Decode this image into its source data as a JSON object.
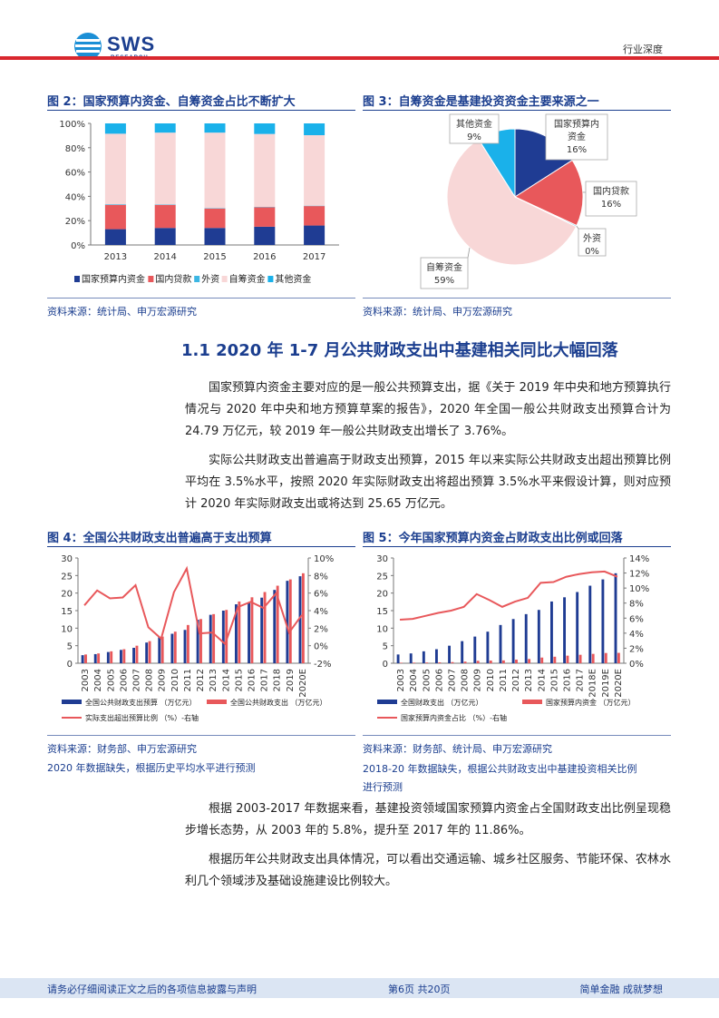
{
  "header": {
    "logo_text": "SWS",
    "logo_sub": "RESEARCH",
    "doc_type": "行业深度"
  },
  "fig2": {
    "title": "图 2：国家预算内资金、自筹资金占比不断扩大",
    "source": "资料来源：统计局、申万宏源研究",
    "chart_data": {
      "type": "bar",
      "stacked": true,
      "categories": [
        "2013",
        "2014",
        "2015",
        "2016",
        "2017"
      ],
      "y_ticks": [
        "0%",
        "20%",
        "40%",
        "60%",
        "80%",
        "100%"
      ],
      "ylim": [
        0,
        100
      ],
      "series": [
        {
          "name": "国家预算内资金",
          "color": "#1f3c93",
          "values": [
            13,
            14,
            14,
            15,
            16
          ]
        },
        {
          "name": "国内贷款",
          "color": "#e8585b",
          "values": [
            20,
            19,
            16,
            16,
            16
          ]
        },
        {
          "name": "外资",
          "color": "#3cb6e3",
          "values": [
            0.5,
            0.4,
            0.4,
            0.3,
            0.3
          ]
        },
        {
          "name": "自筹资金",
          "color": "#f8d7d7",
          "values": [
            58,
            59,
            62,
            60,
            58
          ]
        },
        {
          "name": "其他资金",
          "color": "#1ab1ea",
          "values": [
            8.5,
            7.6,
            7.6,
            8.7,
            9.7
          ]
        }
      ]
    }
  },
  "fig3": {
    "title": "图 3：自筹资金是基建投资资金主要来源之一",
    "source": "资料来源：统计局、申万宏源研究",
    "chart_data": {
      "type": "pie",
      "slices": [
        {
          "name": "国家预算内资金",
          "label1": "国家预算内",
          "label2": "资金",
          "pct": "16%",
          "value": 16,
          "color": "#1f3c93"
        },
        {
          "name": "国内贷款",
          "label1": "国内贷款",
          "label2": "",
          "pct": "16%",
          "value": 16,
          "color": "#e8585b"
        },
        {
          "name": "外资",
          "label1": "外资",
          "label2": "",
          "pct": "0%",
          "value": 0.3,
          "color": "#3cb6e3"
        },
        {
          "name": "自筹资金",
          "label1": "自筹资金",
          "label2": "",
          "pct": "59%",
          "value": 59,
          "color": "#f8d7d7"
        },
        {
          "name": "其他资金",
          "label1": "其他资金",
          "label2": "",
          "pct": "9%",
          "value": 9,
          "color": "#1ab1ea"
        }
      ]
    }
  },
  "section": {
    "heading": "1.1 2020 年 1-7 月公共财政支出中基建相关同比大幅回落",
    "para1": "国家预算内资金主要对应的是一般公共预算支出，据《关于 2019 年中央和地方预算执行情况与 2020 年中央和地方预算草案的报告》，2020 年全国一般公共财政支出预算合计为 24.79 万亿元，较 2019 年一般公共财政支出增长了 3.76%。",
    "para2": "实际公共财政支出普遍高于财政支出预算，2015 年以来实际公共财政支出超出预算比例平均在 3.5%水平，按照 2020 年实际财政支出将超出预算 3.5%水平来假设计算，则对应预计 2020 年实际财政支出或将达到 25.65 万亿元。",
    "para3": "根据 2003-2017 年数据来看，基建投资领域国家预算内资金占全国财政支出比例呈现稳步增长态势，从 2003 年的 5.8%，提升至 2017 年的 11.86%。",
    "para4": "根据历年公共财政支出具体情况，可以看出交通运输、城乡社区服务、节能环保、农林水利几个领域涉及基础设施建设比例较大。"
  },
  "fig4": {
    "title": "图 4：全国公共财政支出普遍高于支出预算",
    "source": "资料来源：财务部、申万宏源研究",
    "note": "2020 年数据缺失，根据历史平均水平进行预测",
    "chart_data": {
      "type": "bar",
      "categories": [
        "2003",
        "2004",
        "2005",
        "2006",
        "2007",
        "2008",
        "2009",
        "2010",
        "2011",
        "2012",
        "2013",
        "2014",
        "2015",
        "2016",
        "2017",
        "2018",
        "2019",
        "2020E"
      ],
      "y_ticks": [
        "0",
        "5",
        "10",
        "15",
        "20",
        "25",
        "30"
      ],
      "y2_ticks": [
        "-2%",
        "0%",
        "2%",
        "4%",
        "6%",
        "8%",
        "10%"
      ],
      "ylim": [
        0,
        30
      ],
      "y2lim": [
        -2,
        10
      ],
      "series": [
        {
          "name": "全国公共财政支出预算（万亿元）",
          "color": "#1f3c93",
          "values": [
            2.3,
            2.6,
            3.2,
            3.8,
            4.4,
            5.9,
            7.4,
            8.4,
            9.5,
            12.4,
            13.8,
            15.0,
            16.8,
            17.3,
            18.7,
            20.9,
            23.5,
            24.8
          ]
        },
        {
          "name": "全国公共财政支出（万亿元）",
          "color": "#e8585b",
          "values": [
            2.5,
            2.8,
            3.4,
            4.0,
            5.0,
            6.3,
            7.6,
            9.0,
            10.9,
            12.6,
            14.0,
            15.2,
            17.6,
            18.8,
            20.3,
            22.1,
            23.9,
            25.65
          ]
        },
        {
          "name": "实际支出超出预算比例（%）-右轴",
          "color": "#e8585b",
          "axis": "right",
          "values": [
            4.6,
            6.3,
            5.4,
            5.5,
            6.9,
            2.1,
            0.8,
            6.1,
            8.8,
            1.4,
            1.5,
            0.2,
            4.4,
            5.0,
            4.3,
            6.0,
            1.5,
            3.5
          ]
        }
      ],
      "legend": [
        "全国公共财政支出预算 （万亿元）",
        "全国公共财政支出 （万亿元）",
        "实际支出超出预算比例 （%）-右轴"
      ]
    }
  },
  "fig5": {
    "title": "图 5：今年国家预算内资金占财政支出比例或回落",
    "source": "资料来源：财务部、统计局、申万宏源研究",
    "note": "2018-20 年数据缺失，根据公共财政支出中基建投资相关比例进行预测",
    "chart_data": {
      "type": "bar",
      "categories": [
        "2003",
        "2004",
        "2005",
        "2006",
        "2007",
        "2008",
        "2009",
        "2010",
        "2011",
        "2012",
        "2013",
        "2014",
        "2015",
        "2016",
        "2017",
        "2018E",
        "2019E",
        "2020E"
      ],
      "y_ticks": [
        "0",
        "5",
        "10",
        "15",
        "20",
        "25",
        "30"
      ],
      "y2_ticks": [
        "0%",
        "2%",
        "4%",
        "6%",
        "8%",
        "10%",
        "12%",
        "14%"
      ],
      "ylim": [
        0,
        30
      ],
      "y2lim": [
        0,
        14
      ],
      "series": [
        {
          "name": "全国财政支出（万亿元）",
          "color": "#1f3c93",
          "values": [
            2.5,
            2.8,
            3.4,
            4.0,
            5.0,
            6.3,
            7.6,
            9.0,
            10.9,
            12.6,
            14.0,
            15.2,
            17.6,
            18.8,
            20.3,
            22.1,
            23.9,
            25.65
          ]
        },
        {
          "name": "国家预算内资金（万亿元）",
          "color": "#e8585b",
          "values": [
            0.15,
            0.17,
            0.21,
            0.26,
            0.33,
            0.46,
            0.7,
            0.76,
            0.81,
            1.03,
            1.21,
            1.62,
            1.86,
            2.16,
            2.41,
            2.67,
            2.92,
            2.96
          ]
        },
        {
          "name": "国家预算内资金占比（%）-右轴",
          "color": "#e8585b",
          "axis": "right",
          "values": [
            5.8,
            5.9,
            6.3,
            6.7,
            7.0,
            7.5,
            9.2,
            8.4,
            7.5,
            8.2,
            8.7,
            10.7,
            10.8,
            11.5,
            11.86,
            12.1,
            12.2,
            11.5
          ]
        }
      ],
      "legend": [
        "全国财政支出 （万亿元）",
        "国家预算内资金 （万亿元）",
        "国家预算内资金占比 （%）-右轴"
      ]
    }
  },
  "footer": {
    "left": "请务必仔细阅读正文之后的各项信息披露与声明",
    "center": "第6页 共20页",
    "right": "简单金融 成就梦想"
  }
}
